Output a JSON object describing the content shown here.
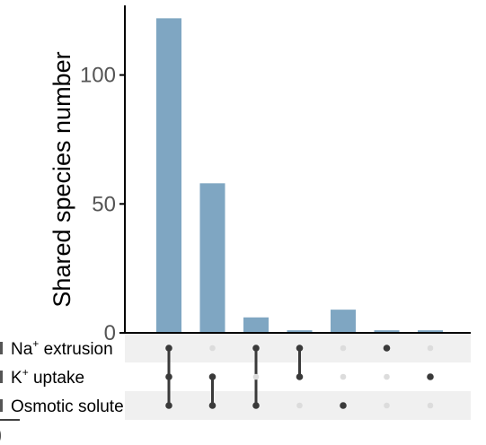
{
  "chart_data": {
    "type": "bar",
    "subtype": "upset",
    "ylabel": "Shared species number",
    "ylim": [
      0,
      127
    ],
    "yticks": [
      0,
      50,
      100
    ],
    "sets": [
      {
        "name": "Na",
        "sup": "+",
        "rest": " extrusion"
      },
      {
        "name": "K",
        "sup": "+",
        "rest": " uptake"
      },
      {
        "name": "Osmotic solute",
        "sup": "",
        "rest": ""
      }
    ],
    "intersections": [
      {
        "members": [
          0,
          1,
          2
        ],
        "value": 122
      },
      {
        "members": [
          1,
          2
        ],
        "value": 58
      },
      {
        "members": [
          0,
          2
        ],
        "value": 6
      },
      {
        "members": [
          0,
          1
        ],
        "value": 1
      },
      {
        "members": [
          2
        ],
        "value": 9
      },
      {
        "members": [
          0
        ],
        "value": 1
      },
      {
        "members": [
          1
        ],
        "value": 1
      }
    ],
    "set_size_axis_partial_label": "0",
    "colors": {
      "bar": "#7fa6c2",
      "dot_active": "#3a3a3a",
      "dot_inactive": "#dcdcdc",
      "stripe": "#f0f0f0",
      "axis": "#000000"
    }
  }
}
